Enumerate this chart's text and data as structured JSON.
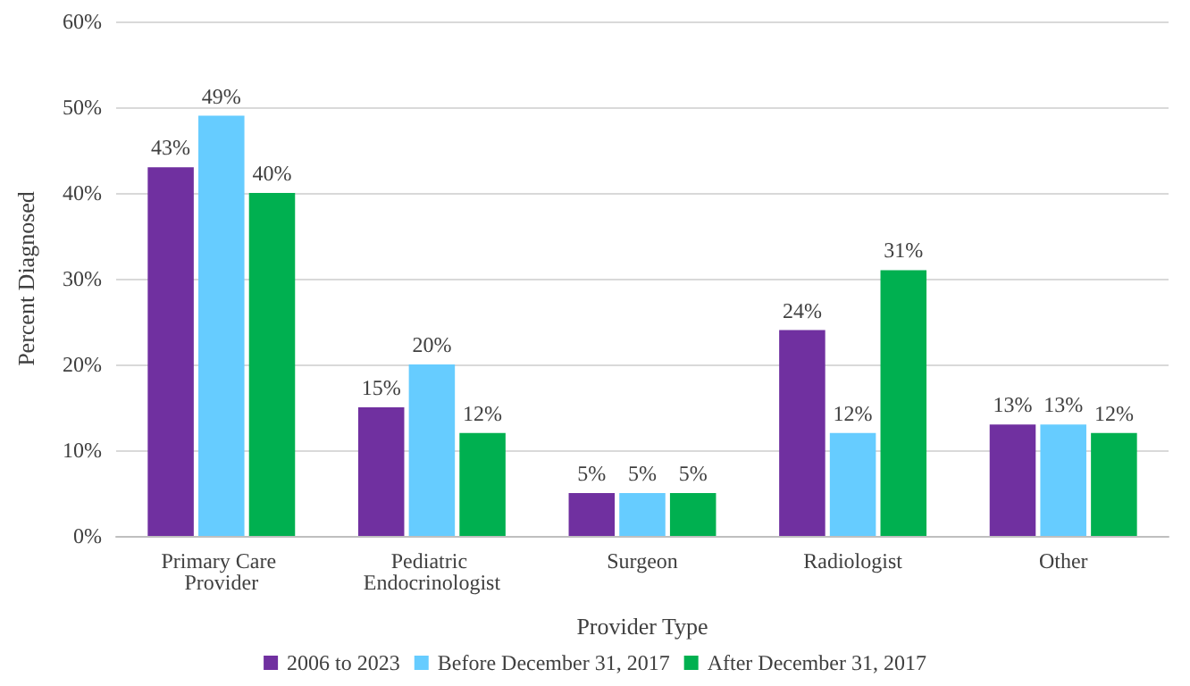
{
  "chart_data": {
    "type": "bar",
    "xlabel": "Provider Type",
    "ylabel": "Percent Diagnosed",
    "categories": [
      "Primary Care Provider",
      "Pediatric Endocrinologist",
      "Surgeon",
      "Radiologist",
      "Other"
    ],
    "series": [
      {
        "name": "2006 to 2023",
        "color": "#7030a0",
        "values": [
          43,
          15,
          5,
          24,
          13
        ],
        "value_labels": [
          "43%",
          "15%",
          "5%",
          "24%",
          "13%"
        ]
      },
      {
        "name": "Before December 31, 2017",
        "color": "#66ccff",
        "values": [
          49,
          20,
          5,
          12,
          13
        ],
        "value_labels": [
          "49%",
          "20%",
          "5%",
          "12%",
          "13%"
        ]
      },
      {
        "name": "After December 31, 2017",
        "color": "#00b050",
        "values": [
          40,
          12,
          5,
          31,
          12
        ],
        "value_labels": [
          "40%",
          "12%",
          "5%",
          "31%",
          "12%"
        ]
      }
    ],
    "ylim": [
      0,
      60
    ],
    "yticks": [
      {
        "value": 0,
        "label": "0%"
      },
      {
        "value": 10,
        "label": "10%"
      },
      {
        "value": 20,
        "label": "20%"
      },
      {
        "value": 30,
        "label": "30%"
      },
      {
        "value": 40,
        "label": "40%"
      },
      {
        "value": 50,
        "label": "50%"
      },
      {
        "value": 60,
        "label": "60%"
      }
    ],
    "grid": "y",
    "legend": "bottom"
  }
}
